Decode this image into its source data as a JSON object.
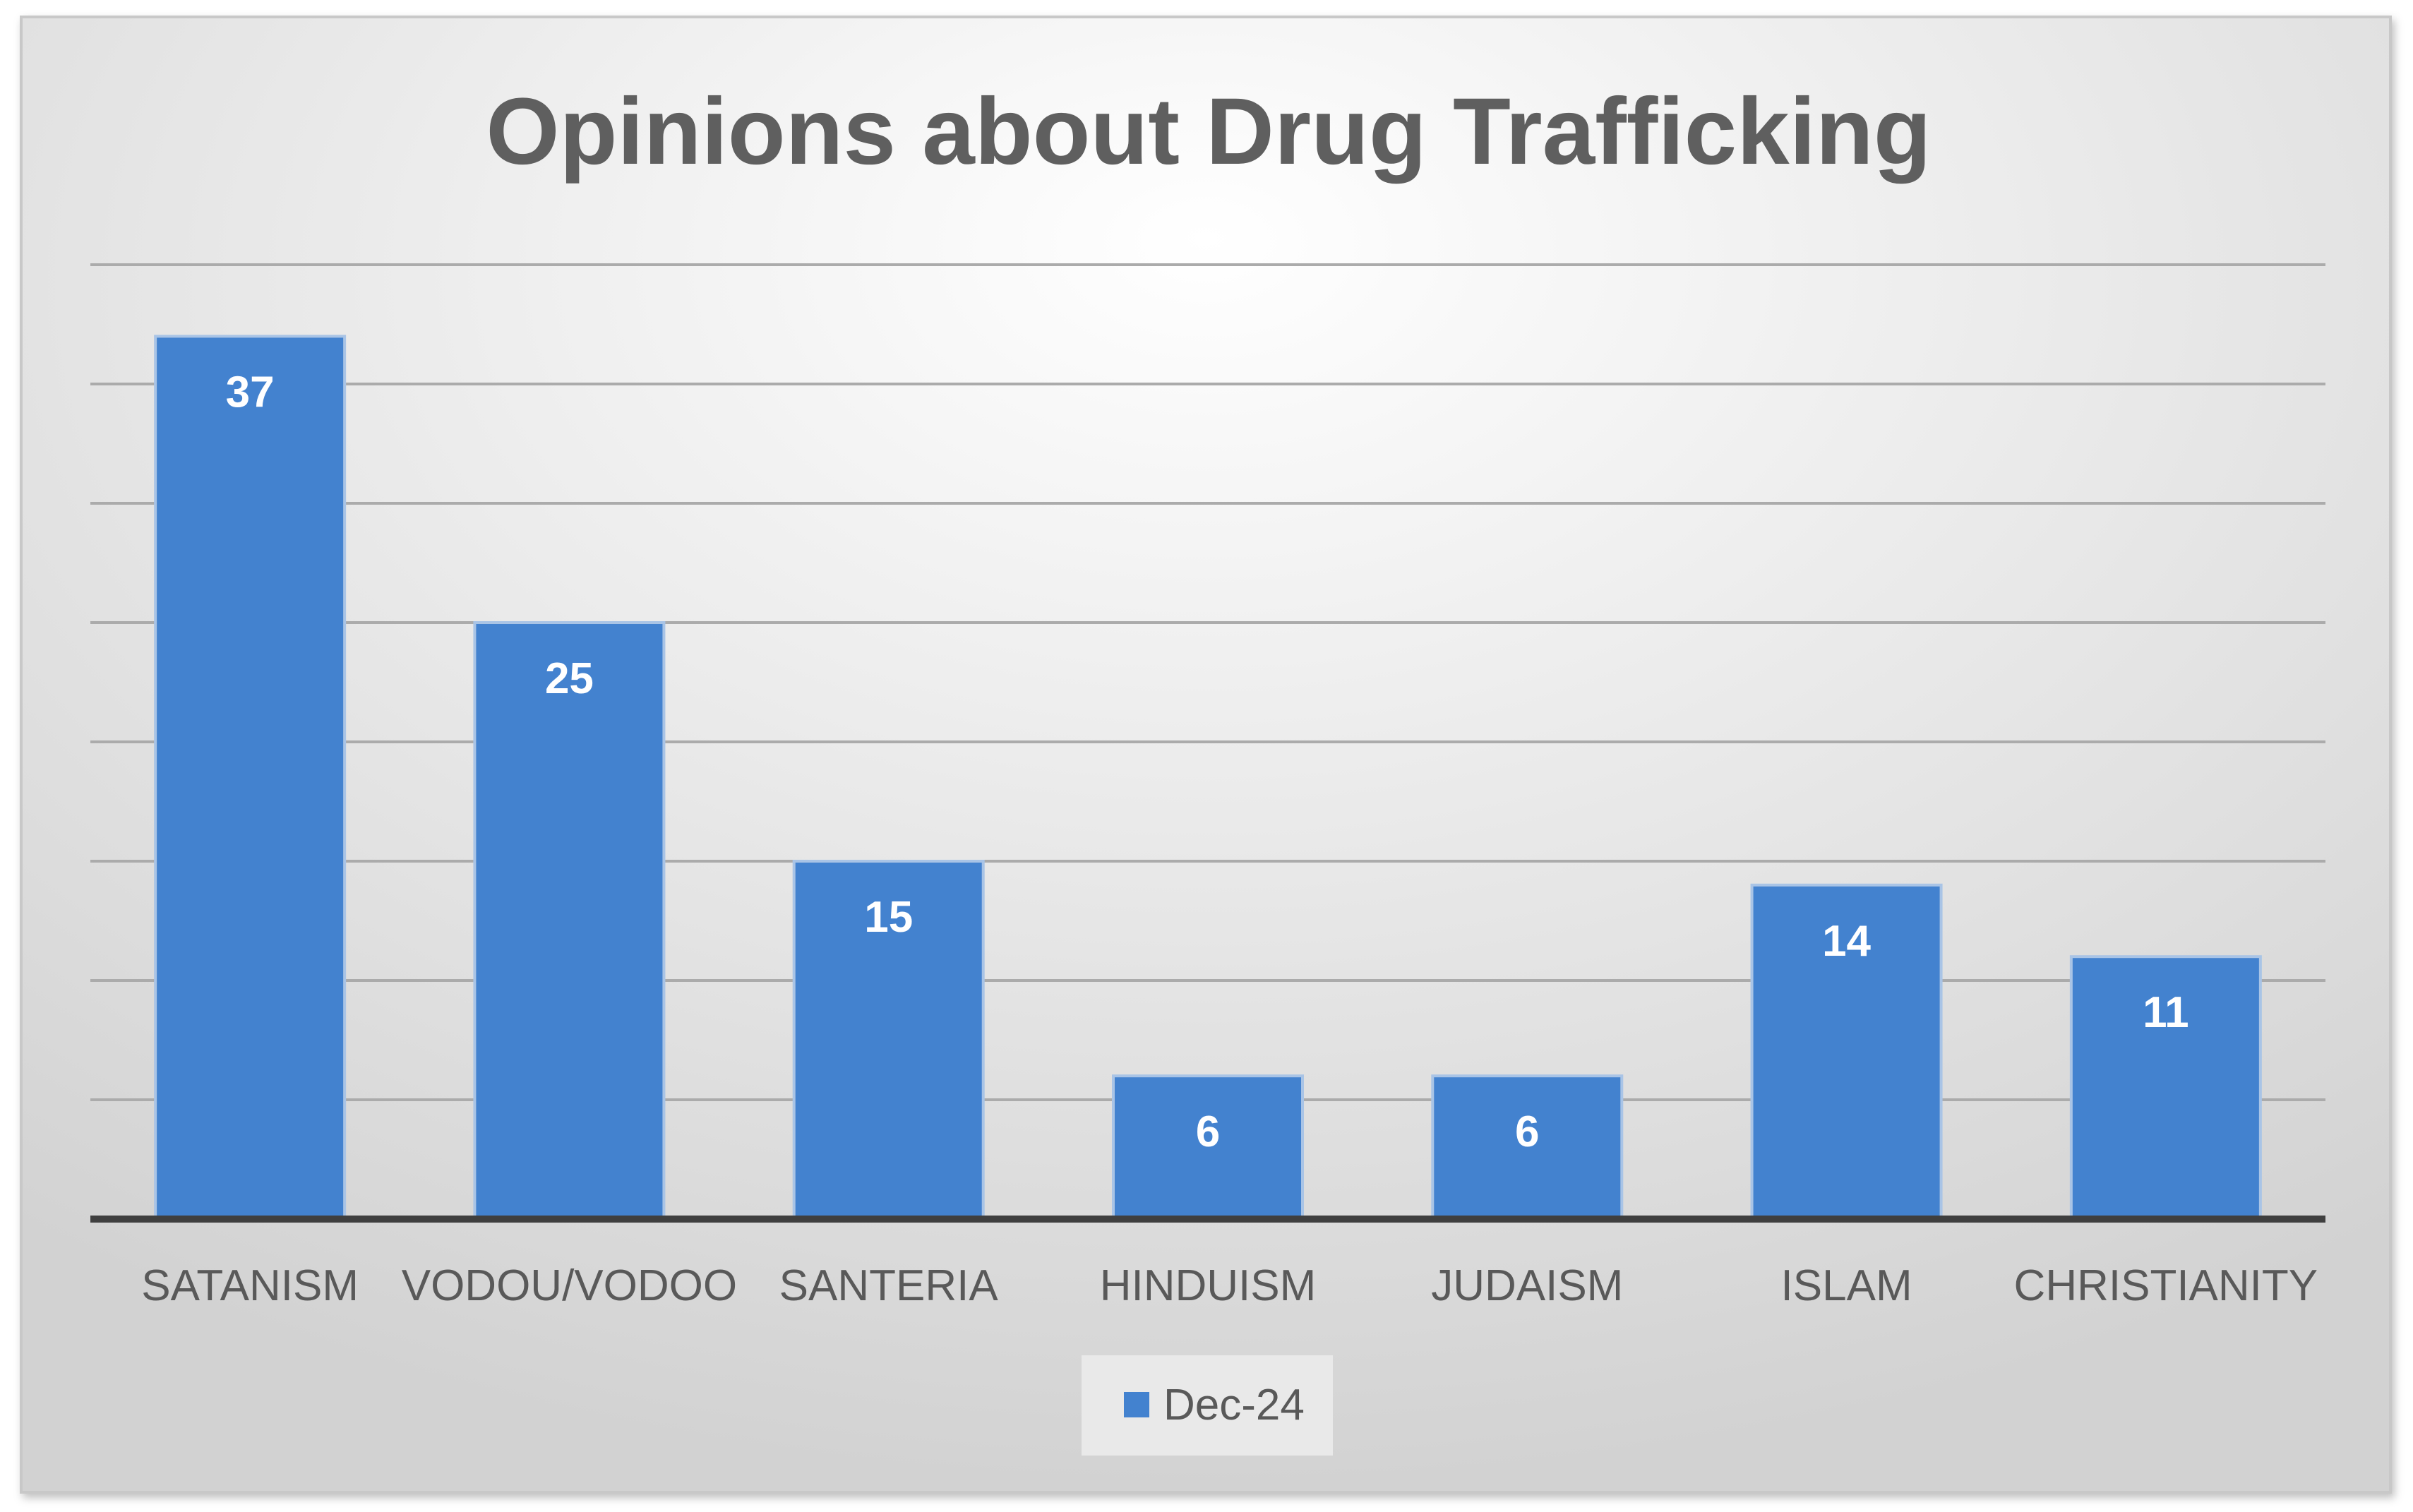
{
  "chart_data": {
    "type": "bar",
    "title": "Opinions about Drug Trafficking",
    "categories": [
      "SATANISM",
      "VODOU/VODOO",
      "SANTERIA",
      "HINDUISM",
      "JUDAISM",
      "ISLAM",
      "CHRISTIANITY"
    ],
    "series": [
      {
        "name": "Dec-24",
        "values": [
          37,
          25,
          15,
          6,
          6,
          14,
          11
        ]
      }
    ],
    "xlabel": "",
    "ylabel": "",
    "ylim": [
      0,
      40
    ],
    "grid": true,
    "legend": "bottom",
    "colors": {
      "bar": "#4382cf",
      "bar_border": "#a9c4e6",
      "gridline": "#ababab",
      "axis": "#3f3f3f"
    }
  }
}
